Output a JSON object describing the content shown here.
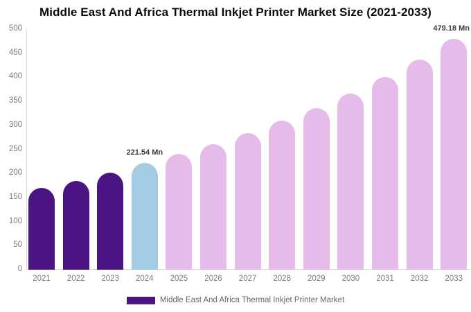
{
  "title": "Middle East And Africa Thermal Inkjet Printer Market Size (2021-2033)",
  "chart_data": {
    "type": "bar",
    "title": "Middle East And Africa Thermal Inkjet Printer Market Size (2021-2033)",
    "categories": [
      "2021",
      "2022",
      "2023",
      "2024",
      "2025",
      "2026",
      "2027",
      "2028",
      "2029",
      "2030",
      "2031",
      "2032",
      "2033"
    ],
    "values": [
      170,
      184,
      202,
      221.54,
      240,
      261,
      284,
      310,
      336,
      366,
      401,
      437,
      479.18
    ],
    "unit": "Mn",
    "bar_colors": [
      "#4A1582",
      "#4A1582",
      "#4A1582",
      "#A3CCE3",
      "#E5BBE9",
      "#E5BBE9",
      "#E5BBE9",
      "#E5BBE9",
      "#E5BBE9",
      "#E5BBE9",
      "#E5BBE9",
      "#E5BBE9",
      "#E5BBE9"
    ],
    "data_labels": [
      {
        "index": 3,
        "text": "221.54 Mn",
        "align": "center"
      },
      {
        "index": 12,
        "text": "479.18 Mn",
        "align": "right"
      }
    ],
    "xlabel": "",
    "ylabel": "",
    "ylim": [
      0,
      500
    ],
    "ytick_step": 50,
    "yticks": [
      "0",
      "50",
      "100",
      "150",
      "200",
      "250",
      "300",
      "350",
      "400",
      "450",
      "500"
    ],
    "grid": false,
    "legend": {
      "position": "bottom",
      "items": [
        {
          "label": "Middle East And Africa Thermal Inkjet Printer Market",
          "color": "#4A1582"
        }
      ]
    },
    "colors": {
      "background": "#ffffff",
      "axis_line": "#d9d9d9",
      "tick_text": "#7a7a7a",
      "title_text": "#0a0a0a",
      "data_label_text": "#3b3b3b",
      "legend_text": "#666666"
    }
  }
}
